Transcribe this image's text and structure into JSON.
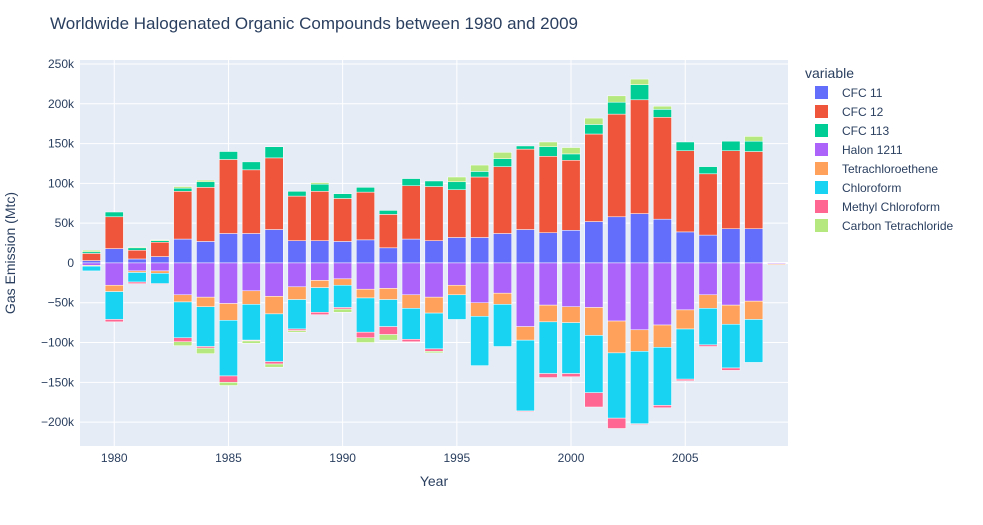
{
  "chart_data": {
    "type": "bar",
    "barmode": "relative",
    "title": "Worldwide Halogenated Organic Compounds between 1980 and 2009",
    "xlabel": "Year",
    "ylabel": "Gas Emission (Mtc)",
    "legend_title": "variable",
    "legend_position": "right",
    "grid": true,
    "xlim": [
      1978.5,
      2009.5
    ],
    "ylim": [
      -230000,
      255000
    ],
    "x_ticks": [
      1980,
      1985,
      1990,
      1995,
      2000,
      2005
    ],
    "y_ticks": [
      -200000,
      -150000,
      -100000,
      -50000,
      0,
      50000,
      100000,
      150000,
      200000,
      250000
    ],
    "y_tick_labels": [
      "−200k",
      "−150k",
      "−100k",
      "−50k",
      "0",
      "50k",
      "100k",
      "150k",
      "200k",
      "250k"
    ],
    "x": [
      1979,
      1980,
      1981,
      1982,
      1983,
      1984,
      1985,
      1986,
      1987,
      1988,
      1989,
      1990,
      1991,
      1992,
      1993,
      1994,
      1995,
      1996,
      1997,
      1998,
      1999,
      2000,
      2001,
      2002,
      2003,
      2004,
      2005,
      2006,
      2007,
      2008,
      2009
    ],
    "series": [
      {
        "name": "CFC 11",
        "color": "#636efa",
        "values": [
          3000,
          18000,
          5000,
          8000,
          30000,
          27000,
          37000,
          37000,
          42000,
          28000,
          28000,
          27000,
          29000,
          19000,
          30000,
          28000,
          32000,
          32000,
          37000,
          42000,
          38000,
          41000,
          52000,
          58000,
          62000,
          55000,
          39000,
          35000,
          43000,
          43000,
          0
        ]
      },
      {
        "name": "CFC 12",
        "color": "#ef553b",
        "values": [
          9000,
          40000,
          11000,
          18000,
          60000,
          68000,
          93000,
          80000,
          90000,
          56000,
          62000,
          54000,
          60000,
          42000,
          67000,
          68000,
          60000,
          76000,
          84000,
          101000,
          96000,
          88000,
          110000,
          129000,
          143000,
          128000,
          102000,
          77000,
          98000,
          97000,
          0
        ]
      },
      {
        "name": "CFC 113",
        "color": "#00cc96",
        "values": [
          2000,
          6000,
          3000,
          2000,
          4000,
          7000,
          10000,
          10000,
          14000,
          6000,
          9000,
          6000,
          6000,
          5000,
          9000,
          7000,
          10000,
          7000,
          10000,
          4000,
          12000,
          8000,
          12000,
          15000,
          19000,
          10000,
          11000,
          9000,
          12000,
          13000,
          0
        ]
      },
      {
        "name": "Halon 1211",
        "color": "#ab63fa",
        "values": [
          -3000,
          -28000,
          -10000,
          -10000,
          -40000,
          -43000,
          -51000,
          -35000,
          -42000,
          -30000,
          -22000,
          -20000,
          -33000,
          -32000,
          -40000,
          -43000,
          -28000,
          -50000,
          -38000,
          -80000,
          -53000,
          -55000,
          -56000,
          -73000,
          -84000,
          -78000,
          -59000,
          -40000,
          -53000,
          -48000,
          -1000
        ]
      },
      {
        "name": "Tetrachloroethene",
        "color": "#ffa15a",
        "values": [
          -1000,
          -8000,
          -2000,
          -3000,
          -9000,
          -12000,
          -21000,
          -17000,
          -22000,
          -16000,
          -9000,
          -8000,
          -11000,
          -14000,
          -17000,
          -20000,
          -12000,
          -17000,
          -14000,
          -17000,
          -21000,
          -20000,
          -35000,
          -40000,
          -27000,
          -28000,
          -24000,
          -17000,
          -24000,
          -23000,
          -1000
        ]
      },
      {
        "name": "Chloroform",
        "color": "#19d3f3",
        "values": [
          -6000,
          -35000,
          -12000,
          -13000,
          -45000,
          -50000,
          -70000,
          -45000,
          -60000,
          -37000,
          -31000,
          -28000,
          -43000,
          -34000,
          -39000,
          -45000,
          -31000,
          -62000,
          -53000,
          -89000,
          -65000,
          -64000,
          -72000,
          -82000,
          -91000,
          -73000,
          -63000,
          -46000,
          -55000,
          -54000,
          0
        ]
      },
      {
        "name": "Methyl Chloroform",
        "color": "#ff6692",
        "values": [
          0,
          -3000,
          -2000,
          -1000,
          -5000,
          -2000,
          -8000,
          -1000,
          -3000,
          -2000,
          -3000,
          -2000,
          -7000,
          -10000,
          -3000,
          -3000,
          0,
          0,
          0,
          -1000,
          -5000,
          -4000,
          -18000,
          -13000,
          -1000,
          -3000,
          -2000,
          -2000,
          -3000,
          0,
          0
        ]
      },
      {
        "name": "Carbon Tetrachloride",
        "color": "#b6e880",
        "values": [
          2000,
          0,
          1000,
          1000,
          2000,
          2000,
          0,
          0,
          0,
          0,
          2000,
          0,
          0,
          0,
          0,
          0,
          6000,
          8000,
          8000,
          0,
          6000,
          8000,
          8000,
          8000,
          7000,
          4000,
          0,
          0,
          0,
          6000,
          0
        ]
      }
    ],
    "negative_extras": [
      {
        "name": "Carbon Tetrachloride",
        "values": [
          0,
          0,
          0,
          0,
          -5000,
          -7000,
          -4000,
          -3000,
          -4000,
          -2000,
          0,
          -4000,
          -6000,
          -7000,
          0,
          -2000,
          0,
          0,
          0,
          0,
          0,
          0,
          0,
          0,
          0,
          0,
          0,
          0,
          0,
          0,
          0
        ]
      }
    ]
  }
}
